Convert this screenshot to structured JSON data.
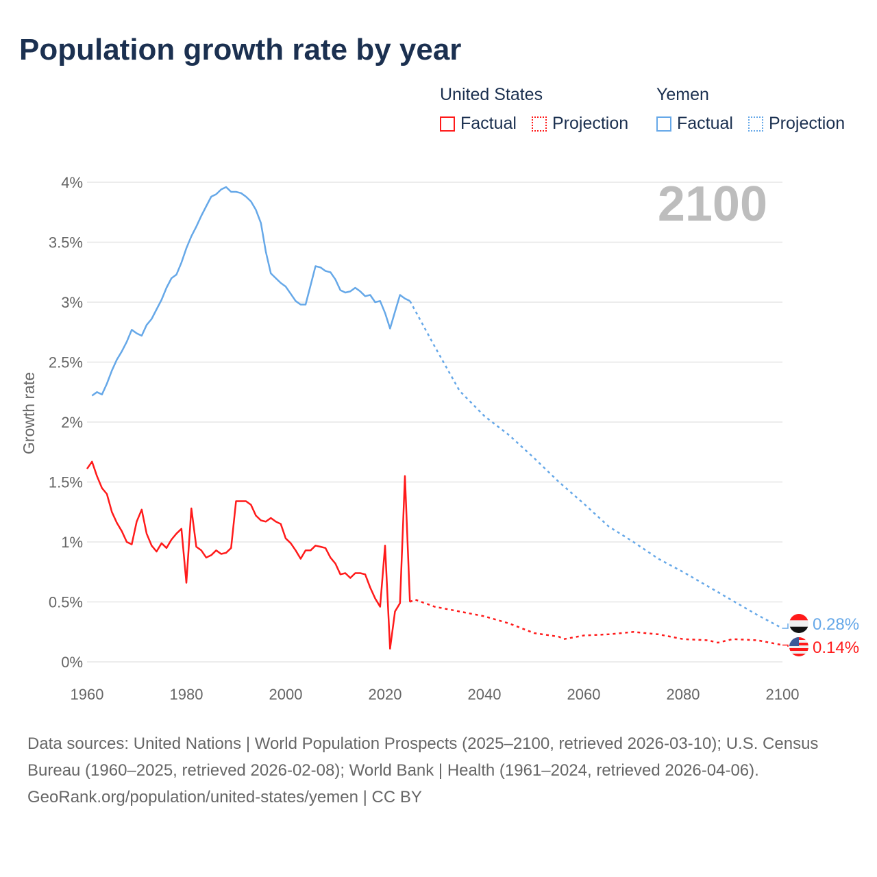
{
  "title": "Population growth rate by year",
  "legend": {
    "groups": [
      {
        "name": "United States",
        "color": "#ff1a1a",
        "items": [
          "Factual",
          "Projection"
        ]
      },
      {
        "name": "Yemen",
        "color": "#66a8e8",
        "items": [
          "Factual",
          "Projection"
        ]
      }
    ]
  },
  "chart_data": {
    "type": "line",
    "title": "Population growth rate by year",
    "xlabel": "",
    "ylabel": "Growth rate",
    "xlim": [
      1960,
      2100
    ],
    "ylim": [
      0,
      4
    ],
    "x_ticks": [
      "1960",
      "1980",
      "2000",
      "2020",
      "2040",
      "2060",
      "2080",
      "2100"
    ],
    "y_ticks": [
      "0%",
      "0.5%",
      "1%",
      "1.5%",
      "2%",
      "2.5%",
      "3%",
      "3.5%",
      "4%"
    ],
    "grid": true,
    "legend_position": "top-right",
    "year_watermark": "2100",
    "series": [
      {
        "name": "United States",
        "color": "#ff1a1a",
        "end_label": "0.14%",
        "factual": {
          "x": [
            1960,
            1961,
            1962,
            1963,
            1964,
            1965,
            1966,
            1967,
            1968,
            1969,
            1970,
            1971,
            1972,
            1973,
            1974,
            1975,
            1976,
            1977,
            1978,
            1979,
            1980,
            1981,
            1982,
            1983,
            1984,
            1985,
            1986,
            1987,
            1988,
            1989,
            1990,
            1991,
            1992,
            1993,
            1994,
            1995,
            1996,
            1997,
            1998,
            1999,
            2000,
            2001,
            2002,
            2003,
            2004,
            2005,
            2006,
            2007,
            2008,
            2009,
            2010,
            2011,
            2012,
            2013,
            2014,
            2015,
            2016,
            2017,
            2018,
            2019,
            2020,
            2021,
            2022,
            2023,
            2024,
            2025
          ],
          "y": [
            1.61,
            1.67,
            1.55,
            1.45,
            1.4,
            1.25,
            1.16,
            1.09,
            1.0,
            0.98,
            1.17,
            1.27,
            1.07,
            0.97,
            0.92,
            0.99,
            0.95,
            1.02,
            1.07,
            1.11,
            0.66,
            1.28,
            0.96,
            0.93,
            0.87,
            0.89,
            0.93,
            0.9,
            0.91,
            0.95,
            1.34,
            1.34,
            1.34,
            1.31,
            1.22,
            1.18,
            1.17,
            1.2,
            1.17,
            1.15,
            1.03,
            0.99,
            0.93,
            0.86,
            0.93,
            0.93,
            0.97,
            0.96,
            0.95,
            0.87,
            0.82,
            0.73,
            0.74,
            0.7,
            0.74,
            0.74,
            0.73,
            0.62,
            0.53,
            0.46,
            0.97,
            0.11,
            0.42,
            0.49,
            1.55,
            0.5
          ]
        },
        "projection": {
          "x": [
            2025,
            2026,
            2030,
            2035,
            2040,
            2045,
            2050,
            2055,
            2056,
            2060,
            2065,
            2070,
            2075,
            2080,
            2085,
            2087,
            2090,
            2095,
            2100
          ],
          "y": [
            0.5,
            0.52,
            0.46,
            0.42,
            0.38,
            0.32,
            0.24,
            0.21,
            0.19,
            0.22,
            0.23,
            0.25,
            0.23,
            0.19,
            0.18,
            0.16,
            0.19,
            0.18,
            0.14
          ]
        }
      },
      {
        "name": "Yemen",
        "color": "#66a8e8",
        "end_label": "0.28%",
        "factual": {
          "x": [
            1961,
            1962,
            1963,
            1964,
            1965,
            1966,
            1967,
            1968,
            1969,
            1970,
            1971,
            1972,
            1973,
            1974,
            1975,
            1976,
            1977,
            1978,
            1979,
            1980,
            1981,
            1982,
            1983,
            1984,
            1985,
            1986,
            1987,
            1988,
            1989,
            1990,
            1991,
            1992,
            1993,
            1994,
            1995,
            1996,
            1997,
            1998,
            1999,
            2000,
            2001,
            2002,
            2003,
            2004,
            2005,
            2006,
            2007,
            2008,
            2009,
            2010,
            2011,
            2012,
            2013,
            2014,
            2015,
            2016,
            2017,
            2018,
            2019,
            2020,
            2021,
            2022,
            2023,
            2024,
            2025
          ],
          "y": [
            2.22,
            2.25,
            2.23,
            2.32,
            2.43,
            2.52,
            2.59,
            2.67,
            2.77,
            2.74,
            2.72,
            2.81,
            2.86,
            2.94,
            3.02,
            3.12,
            3.2,
            3.23,
            3.33,
            3.45,
            3.55,
            3.63,
            3.72,
            3.8,
            3.88,
            3.9,
            3.94,
            3.96,
            3.92,
            3.92,
            3.91,
            3.88,
            3.84,
            3.77,
            3.66,
            3.42,
            3.24,
            3.2,
            3.16,
            3.13,
            3.07,
            3.01,
            2.98,
            2.98,
            3.14,
            3.3,
            3.29,
            3.26,
            3.25,
            3.19,
            3.1,
            3.08,
            3.09,
            3.12,
            3.09,
            3.05,
            3.06,
            3.0,
            3.01,
            2.91,
            2.78,
            2.92,
            3.06,
            3.03,
            3.01
          ]
        },
        "projection": {
          "x": [
            2025,
            2030,
            2035,
            2040,
            2045,
            2050,
            2055,
            2060,
            2065,
            2070,
            2075,
            2080,
            2085,
            2090,
            2095,
            2100
          ],
          "y": [
            3.01,
            2.63,
            2.26,
            2.05,
            1.89,
            1.7,
            1.5,
            1.32,
            1.13,
            1.0,
            0.86,
            0.75,
            0.63,
            0.51,
            0.39,
            0.28
          ]
        }
      }
    ]
  },
  "sources": "Data sources: United Nations | World Population Prospects (2025–2100, retrieved 2026-03-10); U.S. Census Bureau (1960–2025, retrieved 2026-02-08); World Bank | Health (1961–2024, retrieved 2026-04-06).",
  "attribution": "GeoRank.org/population/united-states/yemen | CC BY"
}
